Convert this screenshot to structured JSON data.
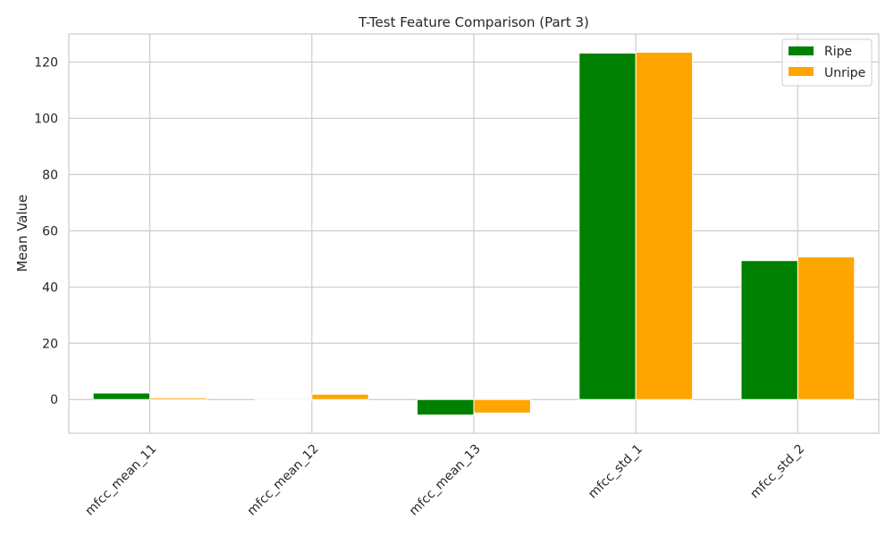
{
  "chart_data": {
    "type": "bar",
    "title": "T-Test Feature Comparison (Part 3)",
    "xlabel": "",
    "ylabel": "Mean Value",
    "categories": [
      "mfcc_mean_11",
      "mfcc_mean_12",
      "mfcc_mean_13",
      "mfcc_std_1",
      "mfcc_std_2"
    ],
    "series": [
      {
        "name": "Ripe",
        "color": "#008000",
        "values": [
          2.3,
          -0.3,
          -5.5,
          123.2,
          49.4
        ]
      },
      {
        "name": "Unripe",
        "color": "#ffa500",
        "values": [
          0.6,
          1.9,
          -4.8,
          123.5,
          50.7
        ]
      }
    ],
    "ylim": [
      -12,
      130
    ],
    "yticks": [
      0,
      20,
      40,
      60,
      80,
      100,
      120
    ],
    "grid": true,
    "legend": "top-right"
  }
}
